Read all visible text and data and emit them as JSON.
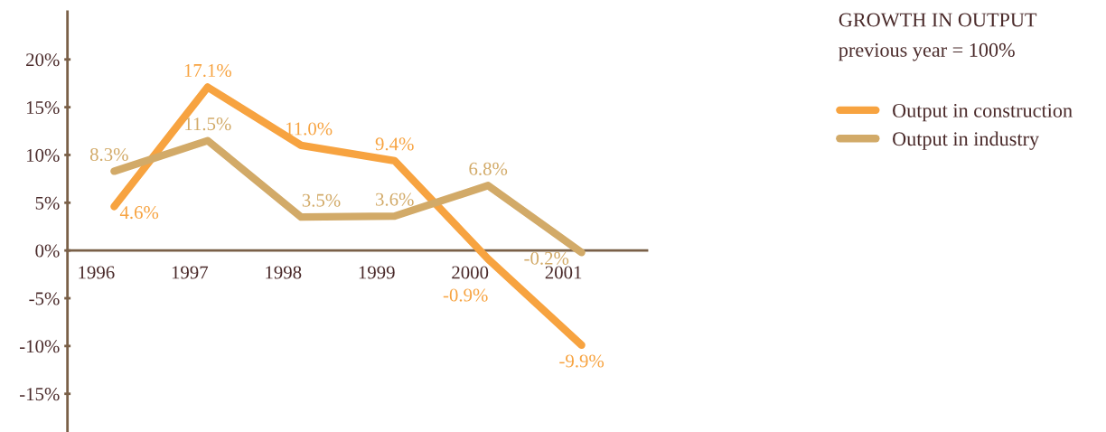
{
  "chart_data": {
    "type": "line",
    "title": "GROWTH IN OUTPUT",
    "subtitle": "previous year = 100%",
    "categories": [
      "1996",
      "1997",
      "1998",
      "1999",
      "2000",
      "2001"
    ],
    "series": [
      {
        "name": "Output in construction",
        "color": "#f7a340",
        "values": [
          4.6,
          17.1,
          11.0,
          9.4,
          -0.9,
          -9.9
        ],
        "value_labels": [
          "4.6%",
          "17.1%",
          "11.0%",
          "9.4%",
          "-0.9%",
          "-9.9%"
        ]
      },
      {
        "name": "Output in industry",
        "color": "#d2aa68",
        "values": [
          8.3,
          11.5,
          3.5,
          3.6,
          6.8,
          -0.2
        ],
        "value_labels": [
          "8.3%",
          "11.5%",
          "3.5%",
          "3.6%",
          "6.8%",
          "-0.2%"
        ]
      }
    ],
    "ylim": [
      -19,
      25
    ],
    "yticks": [
      {
        "value": -15,
        "label": "-15%"
      },
      {
        "value": -10,
        "label": "-10%"
      },
      {
        "value": -5,
        "label": "-5%"
      },
      {
        "value": 0,
        "label": "0%"
      },
      {
        "value": 5,
        "label": "5%"
      },
      {
        "value": 10,
        "label": "10%"
      },
      {
        "value": 15,
        "label": "15%"
      },
      {
        "value": 20,
        "label": "20%"
      }
    ],
    "grid": false,
    "legend": "right",
    "marker": "none",
    "line_style": "solid"
  }
}
